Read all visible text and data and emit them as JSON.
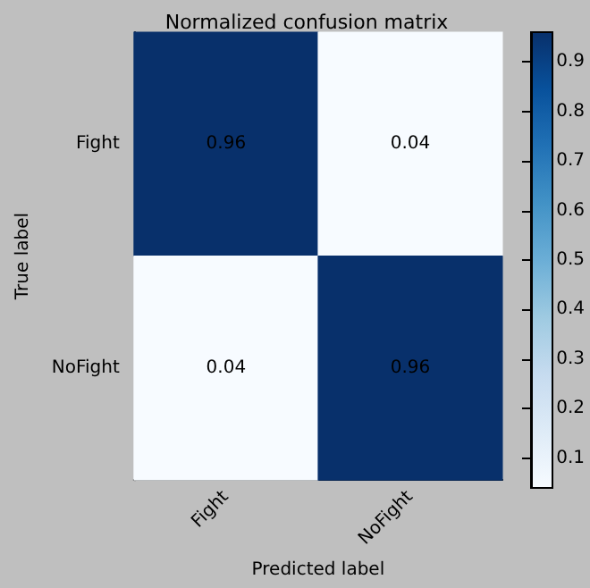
{
  "chart_data": {
    "type": "heatmap",
    "title": "Normalized confusion matrix",
    "xlabel": "Predicted label",
    "ylabel": "True label",
    "categories": [
      "Fight",
      "NoFight"
    ],
    "y_categories": [
      "Fight",
      "NoFight"
    ],
    "cells": [
      [
        0.96,
        0.04
      ],
      [
        0.04,
        0.96
      ]
    ],
    "data_labels": true,
    "clim": [
      0.04,
      0.96
    ],
    "cticks": [
      0.1,
      0.2,
      0.3,
      0.4,
      0.5,
      0.6,
      0.7,
      0.8,
      0.9
    ]
  }
}
